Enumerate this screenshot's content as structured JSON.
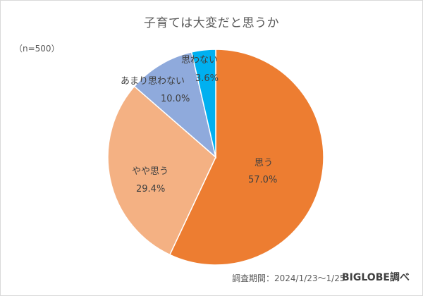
{
  "chart": {
    "title": "子育ては大変だと思うか",
    "sample_size": "（n=500）",
    "footer": {
      "period": "調査期間：2024/1/23～1/25",
      "source": "BIGLOBE調べ"
    }
  },
  "slices": [
    {
      "label": "思う",
      "value_text": "57.0%",
      "color": "#ED7D31"
    },
    {
      "label": "やや思う",
      "value_text": "29.4%",
      "color": "#F4B183"
    },
    {
      "label": "あまり思わない",
      "value_text": "10.0%",
      "color": "#8FAADC"
    },
    {
      "label": "思わない",
      "value_text": "3.6%",
      "color": "#00B0F0"
    }
  ],
  "chart_data": {
    "type": "pie",
    "title": "子育ては大変だと思うか",
    "subtitle": "（n=500）",
    "categories": [
      "思う",
      "やや思う",
      "あまり思わない",
      "思わない"
    ],
    "values": [
      57.0,
      29.4,
      10.0,
      3.6
    ],
    "unit": "%",
    "colors": [
      "#ED7D31",
      "#F4B183",
      "#8FAADC",
      "#00B0F0"
    ],
    "start_angle": "12 o'clock",
    "direction": "clockwise",
    "legend": "none (data labels on slices)",
    "annotations": [
      "調査期間：2024/1/23～1/25",
      "BIGLOBE調べ"
    ]
  }
}
